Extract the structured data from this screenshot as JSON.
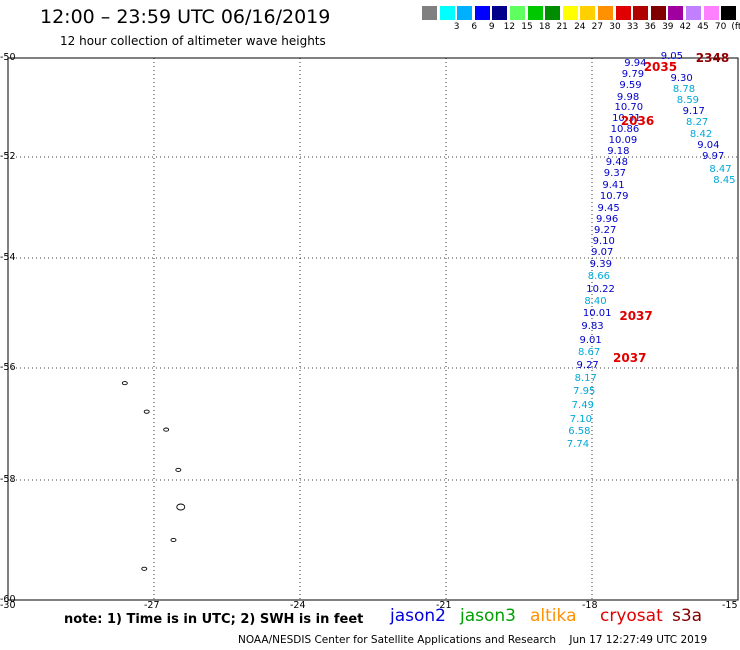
{
  "header": {
    "title": "12:00 – 23:59 UTC 06/16/2019",
    "subtitle": "12 hour collection of altimeter wave heights"
  },
  "legend": {
    "swatches": [
      {
        "color": "#808080",
        "label": ""
      },
      {
        "color": "#00ffff",
        "label": "3"
      },
      {
        "color": "#00b0ff",
        "label": "6"
      },
      {
        "color": "#0000ff",
        "label": "9"
      },
      {
        "color": "#00008b",
        "label": "12"
      },
      {
        "color": "#60ff60",
        "label": "15"
      },
      {
        "color": "#00c800",
        "label": "18"
      },
      {
        "color": "#008c00",
        "label": "21"
      },
      {
        "color": "#ffff00",
        "label": "24"
      },
      {
        "color": "#ffd000",
        "label": "27"
      },
      {
        "color": "#ff9000",
        "label": "30"
      },
      {
        "color": "#e00000",
        "label": "33"
      },
      {
        "color": "#b00000",
        "label": "36"
      },
      {
        "color": "#800000",
        "label": "39"
      },
      {
        "color": "#a000a0",
        "label": "42"
      },
      {
        "color": "#c080ff",
        "label": "45"
      },
      {
        "color": "#ff80ff",
        "label": "70"
      },
      {
        "color": "#000000",
        "label": "(ft)"
      }
    ]
  },
  "axes": {
    "lat_labels": [
      "-50",
      "-52",
      "-54",
      "-56",
      "-58",
      "-60"
    ],
    "lon_labels": [
      "-30",
      "-27",
      "-24",
      "-21",
      "-18",
      "-15"
    ]
  },
  "track_a": {
    "color": "#0000cc",
    "alt_color": "#00a8d8",
    "points": [
      {
        "v": "9.94",
        "lat": -50.13,
        "lon": -17.05,
        "c": "a"
      },
      {
        "v": "9.79",
        "lat": -50.35,
        "lon": -17.1,
        "c": "a"
      },
      {
        "v": "9.59",
        "lat": -50.57,
        "lon": -17.15,
        "c": "a"
      },
      {
        "v": "9.98",
        "lat": -50.8,
        "lon": -17.2,
        "c": "a"
      },
      {
        "v": "10.70",
        "lat": -51.02,
        "lon": -17.25,
        "c": "a"
      },
      {
        "v": "10.31",
        "lat": -51.24,
        "lon": -17.3,
        "c": "a"
      },
      {
        "v": "10.86",
        "lat": -51.46,
        "lon": -17.33,
        "c": "a"
      },
      {
        "v": "10.09",
        "lat": -51.68,
        "lon": -17.37,
        "c": "a"
      },
      {
        "v": "9.18",
        "lat": -51.9,
        "lon": -17.4,
        "c": "a"
      },
      {
        "v": "9.48",
        "lat": -52.12,
        "lon": -17.43,
        "c": "a"
      },
      {
        "v": "9.37",
        "lat": -52.34,
        "lon": -17.47,
        "c": "a"
      },
      {
        "v": "9.41",
        "lat": -52.57,
        "lon": -17.5,
        "c": "a"
      },
      {
        "v": "10.79",
        "lat": -52.8,
        "lon": -17.55,
        "c": "a"
      },
      {
        "v": "9.45",
        "lat": -53.02,
        "lon": -17.6,
        "c": "a"
      },
      {
        "v": "9.96",
        "lat": -53.24,
        "lon": -17.63,
        "c": "a"
      },
      {
        "v": "9.27",
        "lat": -53.46,
        "lon": -17.67,
        "c": "a"
      },
      {
        "v": "9.10",
        "lat": -53.68,
        "lon": -17.7,
        "c": "a"
      },
      {
        "v": "9.07",
        "lat": -53.9,
        "lon": -17.73,
        "c": "a"
      },
      {
        "v": "9.39",
        "lat": -54.12,
        "lon": -17.76,
        "c": "a"
      },
      {
        "v": "8.66",
        "lat": -54.34,
        "lon": -17.8,
        "c": "b"
      },
      {
        "v": "10.22",
        "lat": -54.58,
        "lon": -17.83,
        "c": "a"
      },
      {
        "v": "8.40",
        "lat": -54.8,
        "lon": -17.87,
        "c": "b"
      },
      {
        "v": "10.01",
        "lat": -55.02,
        "lon": -17.9,
        "c": "a"
      },
      {
        "v": "9.83",
        "lat": -55.26,
        "lon": -17.93,
        "c": "a"
      },
      {
        "v": "9.01",
        "lat": -55.5,
        "lon": -17.97,
        "c": "a"
      },
      {
        "v": "8.67",
        "lat": -55.72,
        "lon": -18.0,
        "c": "b"
      },
      {
        "v": "9.27",
        "lat": -55.96,
        "lon": -18.03,
        "c": "a"
      },
      {
        "v": "8.17",
        "lat": -56.2,
        "lon": -18.07,
        "c": "b"
      },
      {
        "v": "7.95",
        "lat": -56.43,
        "lon": -18.1,
        "c": "b"
      },
      {
        "v": "7.49",
        "lat": -56.68,
        "lon": -18.13,
        "c": "b"
      },
      {
        "v": "7.10",
        "lat": -56.92,
        "lon": -18.17,
        "c": "b"
      },
      {
        "v": "6.58",
        "lat": -57.15,
        "lon": -18.2,
        "c": "b"
      },
      {
        "v": "7.74",
        "lat": -57.38,
        "lon": -18.23,
        "c": "b"
      }
    ]
  },
  "track_b": {
    "points": [
      {
        "v": "9.05",
        "lat": -49.97,
        "lon": -16.3,
        "c": "a"
      },
      {
        "v": "9.30",
        "lat": -50.42,
        "lon": -16.1,
        "c": "a"
      },
      {
        "v": "8.78",
        "lat": -50.65,
        "lon": -16.05,
        "c": "b"
      },
      {
        "v": "8.59",
        "lat": -50.87,
        "lon": -15.97,
        "c": "b"
      },
      {
        "v": "9.17",
        "lat": -51.1,
        "lon": -15.85,
        "c": "a"
      },
      {
        "v": "8.27",
        "lat": -51.32,
        "lon": -15.78,
        "c": "b"
      },
      {
        "v": "8.42",
        "lat": -51.55,
        "lon": -15.7,
        "c": "b"
      },
      {
        "v": "9.04",
        "lat": -51.77,
        "lon": -15.55,
        "c": "a"
      },
      {
        "v": "9.97",
        "lat": -52.0,
        "lon": -15.45,
        "c": "a"
      },
      {
        "v": "8.47",
        "lat": -52.25,
        "lon": -15.3,
        "c": "b"
      },
      {
        "v": "8.45",
        "lat": -52.47,
        "lon": -15.22,
        "c": "b"
      }
    ]
  },
  "time_labels": [
    {
      "text": "2348",
      "lat": -49.99,
      "lon": -15.58,
      "color": "#900000"
    },
    {
      "text": "2035",
      "lat": -50.19,
      "lon": -16.65,
      "color": "#e00000"
    },
    {
      "text": "2036",
      "lat": -51.28,
      "lon": -17.12,
      "color": "#e00000"
    },
    {
      "text": "2037",
      "lat": -55.06,
      "lon": -17.15,
      "color": "#e00000"
    },
    {
      "text": "2037",
      "lat": -55.82,
      "lon": -17.28,
      "color": "#e00000"
    }
  ],
  "note": "note:  1) Time is in UTC;  2) SWH is in feet",
  "satellites": [
    {
      "name": "jason2",
      "color": "#0000dd"
    },
    {
      "name": "jason3",
      "color": "#00a000"
    },
    {
      "name": "altika",
      "color": "#ff9000"
    },
    {
      "name": "cryosat",
      "color": "#e00000"
    },
    {
      "name": "s3a",
      "color": "#800000"
    }
  ],
  "footer": {
    "credit": "NOAA/NESDIS Center for Satellite Applications and Research",
    "timestamp": "Jun 17 12:27:49 UTC 2019"
  },
  "islands": [
    {
      "lat": -56.27,
      "lon": -27.6
    },
    {
      "lat": -56.78,
      "lon": -27.15
    },
    {
      "lat": -57.1,
      "lon": -26.75
    },
    {
      "lat": -57.82,
      "lon": -26.5
    },
    {
      "lat": -58.45,
      "lon": -26.45
    },
    {
      "lat": -59.0,
      "lon": -26.6
    },
    {
      "lat": -59.48,
      "lon": -27.2
    }
  ]
}
